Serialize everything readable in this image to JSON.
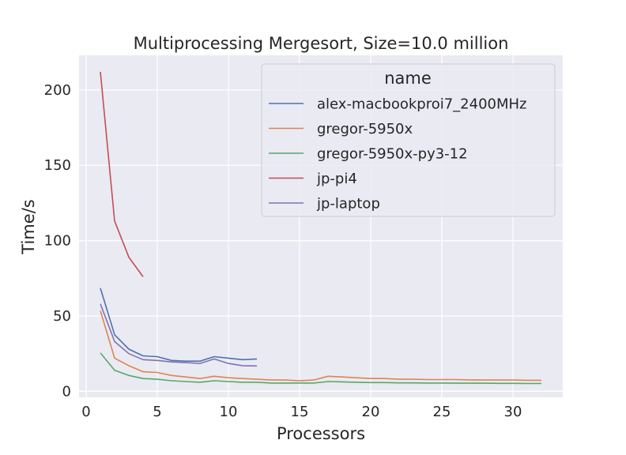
{
  "chart_data": {
    "type": "line",
    "title": "Multiprocessing Mergesort, Size=10.0 million",
    "xlabel": "Processors",
    "ylabel": "Time/s",
    "xlim": [
      -0.5,
      33.5
    ],
    "ylim": [
      -4,
      223
    ],
    "xticks": [
      0,
      5,
      10,
      15,
      20,
      25,
      30
    ],
    "yticks": [
      0,
      50,
      100,
      150,
      200
    ],
    "grid": true,
    "legend_title": "name",
    "legend_placement": "top-right",
    "series": [
      {
        "name": "alex-macbookproi7_2400MHz",
        "color": "#4c72b0",
        "x": [
          1,
          2,
          3,
          4,
          5,
          6,
          7,
          8,
          9,
          10,
          11,
          12
        ],
        "y": [
          68.5,
          37.5,
          28,
          23.5,
          23,
          20.5,
          20,
          20,
          23,
          22,
          21,
          21.5
        ]
      },
      {
        "name": "gregor-5950x",
        "color": "#dd8452",
        "x": [
          1,
          2,
          3,
          4,
          5,
          6,
          7,
          8,
          9,
          10,
          11,
          12,
          13,
          14,
          15,
          16,
          17,
          18,
          19,
          20,
          21,
          22,
          23,
          24,
          25,
          26,
          27,
          28,
          29,
          30,
          31,
          32
        ],
        "y": [
          53.5,
          22,
          17,
          13,
          12.5,
          10.5,
          9.5,
          8.5,
          10,
          9,
          8.5,
          8,
          7.5,
          7.5,
          7,
          7.5,
          10,
          9.5,
          9,
          8.5,
          8.5,
          8,
          8,
          7.8,
          7.8,
          7.8,
          7.6,
          7.5,
          7.5,
          7.5,
          7.3,
          7.3
        ]
      },
      {
        "name": "gregor-5950x-py3-12",
        "color": "#55a868",
        "x": [
          1,
          2,
          3,
          4,
          5,
          6,
          7,
          8,
          9,
          10,
          11,
          12,
          13,
          14,
          15,
          16,
          17,
          18,
          19,
          20,
          21,
          22,
          23,
          24,
          25,
          26,
          27,
          28,
          29,
          30,
          31,
          32
        ],
        "y": [
          25.5,
          14,
          10.5,
          8.5,
          8,
          7,
          6.5,
          6,
          7,
          6.5,
          6,
          6,
          5.5,
          5.5,
          5.5,
          5.5,
          6.5,
          6.3,
          6,
          5.8,
          5.8,
          5.6,
          5.6,
          5.5,
          5.5,
          5.4,
          5.4,
          5.4,
          5.3,
          5.3,
          5.2,
          5.2
        ]
      },
      {
        "name": "jp-pi4",
        "color": "#c44e52",
        "x": [
          1,
          2,
          3,
          4
        ],
        "y": [
          212,
          113,
          89,
          76
        ]
      },
      {
        "name": "jp-laptop",
        "color": "#8172b3",
        "x": [
          1,
          2,
          3,
          4,
          5,
          6,
          7,
          8,
          9,
          10,
          11,
          12
        ],
        "y": [
          58,
          33,
          25,
          21,
          20.5,
          19.5,
          19,
          18.5,
          21.5,
          18.5,
          17,
          16.8
        ]
      }
    ]
  }
}
